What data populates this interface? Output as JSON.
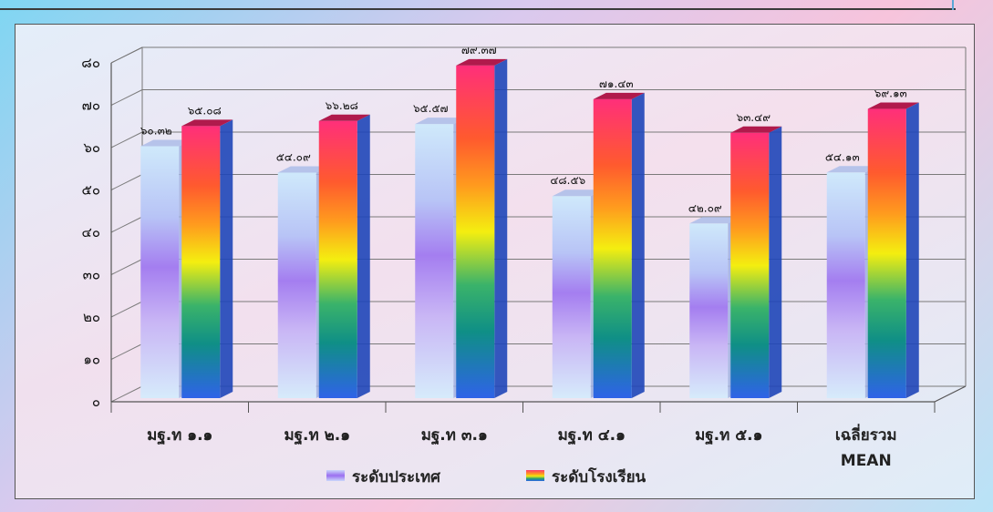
{
  "chart_data": {
    "type": "bar",
    "title": "",
    "xlabel": "",
    "ylabel": "",
    "ylim": [
      0,
      80
    ],
    "yticks": [
      0,
      10,
      20,
      30,
      40,
      50,
      60,
      70,
      80
    ],
    "ytick_labels": [
      "๐",
      "๑๐",
      "๒๐",
      "๓๐",
      "๔๐",
      "๕๐",
      "๖๐",
      "๗๐",
      "๘๐"
    ],
    "grid": true,
    "legend_position": "bottom",
    "categories": [
      "มฐ.ท ๑.๑",
      "มฐ.ท ๒.๑",
      "มฐ.ท ๓.๑",
      "มฐ.ท ๔.๑",
      "มฐ.ท ๕.๑",
      "เฉลี่ยรวม MEAN"
    ],
    "series": [
      {
        "name": "ระดับประเทศ",
        "values": [
          60.32,
          54.09,
          65.57,
          48.56,
          42.09,
          54.13
        ],
        "labels": [
          "๖๐.๓๒",
          "๕๔.๐๙",
          "๖๕.๕๗",
          "๔๘.๕๖",
          "๔๒.๐๙",
          "๕๔.๑๓"
        ],
        "style": "pastel-gradient"
      },
      {
        "name": "ระดับโรงเรียน",
        "values": [
          65.08,
          66.28,
          79.37,
          71.43,
          63.49,
          69.13
        ],
        "labels": [
          "๖๕.๐๘",
          "๖๖.๒๘",
          "๗๙.๓๗",
          "๗๑.๔๓",
          "๖๓.๔๙",
          "๖๙.๑๓"
        ],
        "style": "rainbow-gradient"
      }
    ]
  }
}
